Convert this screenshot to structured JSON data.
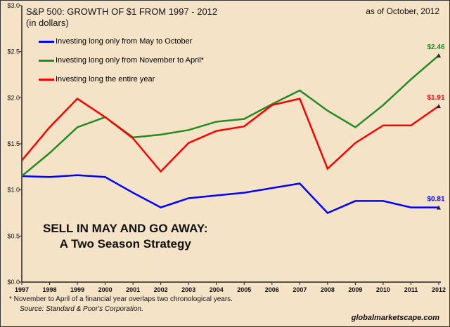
{
  "chart_data": {
    "type": "line",
    "title": "S&P 500:  GROWTH OF $1 FROM 1997  - 2012",
    "subtitle": "(in dollars)",
    "as_of": "as of October, 2012",
    "headline": [
      "SELL IN MAY AND GO AWAY:",
      "A Two Season Strategy"
    ],
    "footnote": "*  November to April of  a financial year overlaps two chronological years.",
    "source": "Source: Standard & Poor's Corporation.",
    "site": "globalmarketscape.com",
    "x": [
      1997,
      1998,
      1999,
      2000,
      2001,
      2002,
      2003,
      2004,
      2005,
      2006,
      2007,
      2008,
      2009,
      2010,
      2011,
      2012
    ],
    "ylim": [
      0,
      3.0
    ],
    "yticks": [
      "$0.0",
      "$0.5",
      "$1.0",
      "$1.5",
      "$2.0",
      "$2.5",
      "$3.0"
    ],
    "grid": false,
    "legend_placement": "top-left",
    "series": [
      {
        "name": "Investing long only from May to October",
        "color": "#0000ff",
        "values": [
          1.15,
          1.14,
          1.16,
          1.14,
          0.97,
          0.81,
          0.91,
          0.94,
          0.97,
          1.02,
          1.07,
          0.75,
          0.88,
          0.88,
          0.81,
          0.81
        ],
        "end_label": "$0.81"
      },
      {
        "name": "Investing long only from November to April*",
        "color": "#228b22",
        "values": [
          1.15,
          1.4,
          1.68,
          1.79,
          1.57,
          1.6,
          1.65,
          1.74,
          1.77,
          1.93,
          2.08,
          1.86,
          1.68,
          1.92,
          2.2,
          2.46
        ],
        "end_label": "$2.46"
      },
      {
        "name": "Investing long the entire year",
        "color": "#ff0000",
        "values": [
          1.32,
          1.68,
          1.99,
          1.79,
          1.56,
          1.2,
          1.51,
          1.64,
          1.69,
          1.92,
          1.99,
          1.23,
          1.51,
          1.7,
          1.7,
          1.91
        ],
        "end_label": "$1.91"
      }
    ]
  }
}
